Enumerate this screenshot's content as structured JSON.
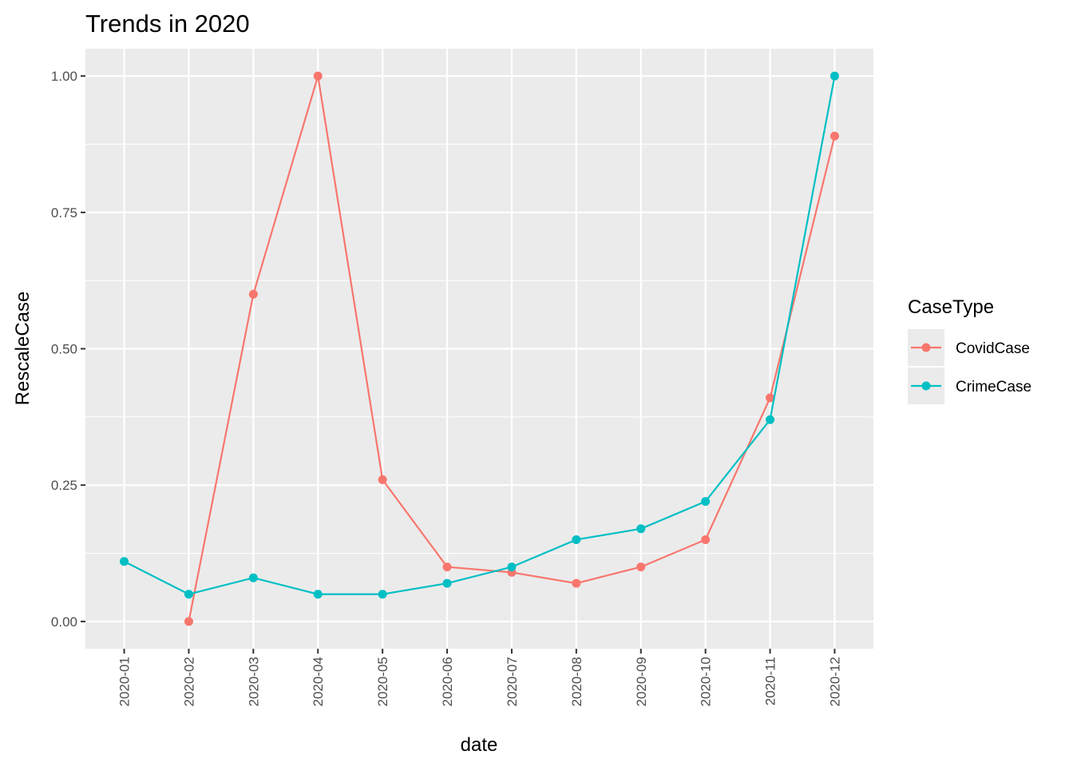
{
  "chart_data": {
    "type": "line",
    "title": "Trends in 2020",
    "xlabel": "date",
    "ylabel": "RescaleCase",
    "categories": [
      "2020-01",
      "2020-02",
      "2020-03",
      "2020-04",
      "2020-05",
      "2020-06",
      "2020-07",
      "2020-08",
      "2020-09",
      "2020-10",
      "2020-11",
      "2020-12"
    ],
    "yticks": [
      0.0,
      0.25,
      0.5,
      0.75,
      1.0
    ],
    "ytick_labels": [
      "0.00",
      "0.25",
      "0.50",
      "0.75",
      "1.00"
    ],
    "ylim": [
      -0.05,
      1.05
    ],
    "grid": true,
    "points": true,
    "legend": {
      "title": "CaseType",
      "placement": "right"
    },
    "series": [
      {
        "name": "CovidCase",
        "color": "#F8766D",
        "values": [
          null,
          0.0,
          0.6,
          1.0,
          0.26,
          0.1,
          0.09,
          0.07,
          0.1,
          0.15,
          0.41,
          0.89
        ]
      },
      {
        "name": "CrimeCase",
        "color": "#00BFC4",
        "values": [
          0.11,
          0.05,
          0.08,
          0.05,
          0.05,
          0.07,
          0.1,
          0.15,
          0.17,
          0.22,
          0.37,
          1.0
        ]
      }
    ]
  }
}
